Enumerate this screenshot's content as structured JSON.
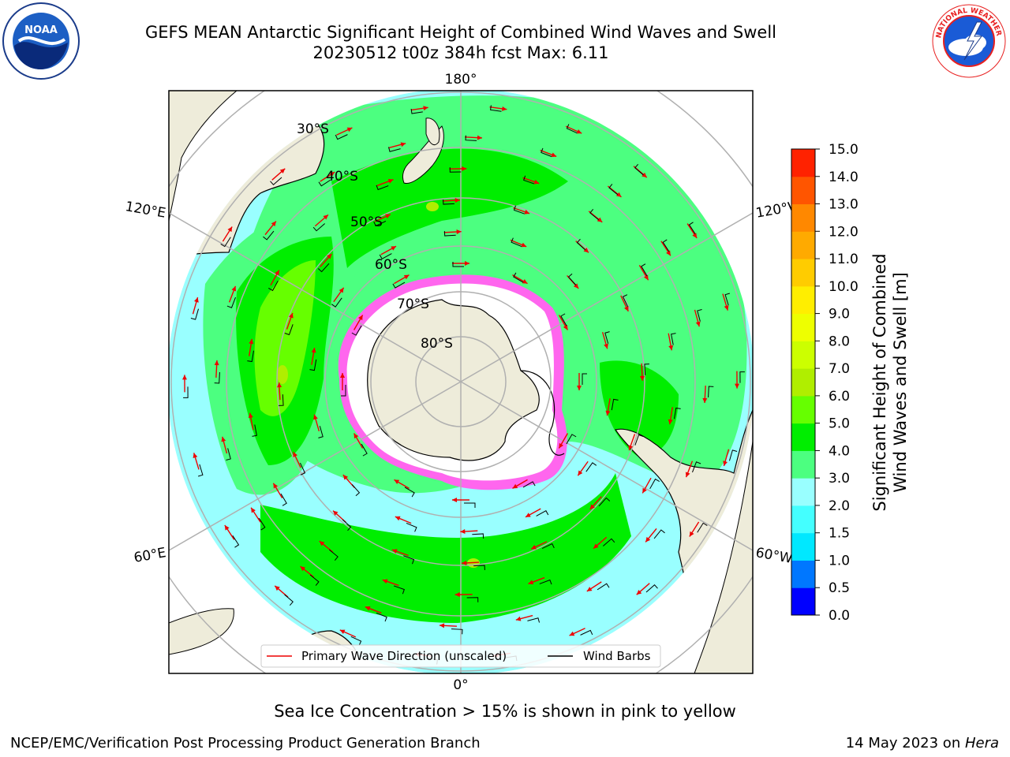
{
  "header": {
    "title_line1": "GEFS MEAN Antarctic Significant Height of Combined Wind Waves and Swell",
    "title_line2": "20230512 t00z 384h fcst   Max: 6.11"
  },
  "logos": {
    "noaa": {
      "label": "NOAA",
      "ring_text": "NATIONAL OCEANIC AND ATMOSPHERIC ADMINISTRATION · U.S. DEPARTMENT OF COMMERCE"
    },
    "nws": {
      "ring_text": "NATIONAL WEATHER SERVICE"
    }
  },
  "map": {
    "projection": "south-polar-stereographic",
    "longitude_labels": {
      "top": "180°",
      "bottom": "0°",
      "left_upper": "120°E",
      "left_lower": "60°E",
      "right_upper": "120°W",
      "right_lower": "60°W"
    },
    "latitude_labels": [
      "30°S",
      "40°S",
      "50°S",
      "60°S",
      "70°S",
      "80°S"
    ],
    "legend": {
      "wave_direction": "Primary Wave Direction (unscaled)",
      "wind_barbs": "Wind Barbs"
    },
    "colors": {
      "land": "#eeecda",
      "ice": "#ffffff",
      "grid": "#b0b0b0",
      "arrows": "#ee0000"
    }
  },
  "colorbar": {
    "title": "Significant Height of Combined Wind Waves and Swell [m]",
    "title_line1": "Significant Height of Combined",
    "title_line2": "Wind Waves and Swell [m]",
    "levels": [
      0.0,
      0.5,
      1.0,
      1.5,
      2.0,
      3.0,
      4.0,
      5.0,
      6.0,
      7.0,
      8.0,
      9.0,
      10.0,
      11.0,
      12.0,
      13.0,
      14.0,
      15.0
    ],
    "tick_labels": [
      "0.0",
      "0.5",
      "1.0",
      "1.5",
      "2.0",
      "3.0",
      "4.0",
      "5.0",
      "6.0",
      "7.0",
      "8.0",
      "9.0",
      "10.0",
      "11.0",
      "12.0",
      "13.0",
      "14.0",
      "15.0"
    ],
    "colors": [
      "#0000ff",
      "#0077ff",
      "#00e8ff",
      "#44ffff",
      "#99ffff",
      "#4cff80",
      "#00ee00",
      "#66ff00",
      "#b0ee00",
      "#ccff00",
      "#eeff00",
      "#ffee00",
      "#ffcc00",
      "#ffaa00",
      "#ff8800",
      "#ff5500",
      "#ff2200"
    ]
  },
  "caption": "Sea Ice Concentration > 15% is shown in pink to yellow",
  "footer": {
    "left": "NCEP/EMC/Verification Post Processing Product Generation Branch",
    "date": "14 May 2023 on ",
    "machine": "Hera"
  }
}
